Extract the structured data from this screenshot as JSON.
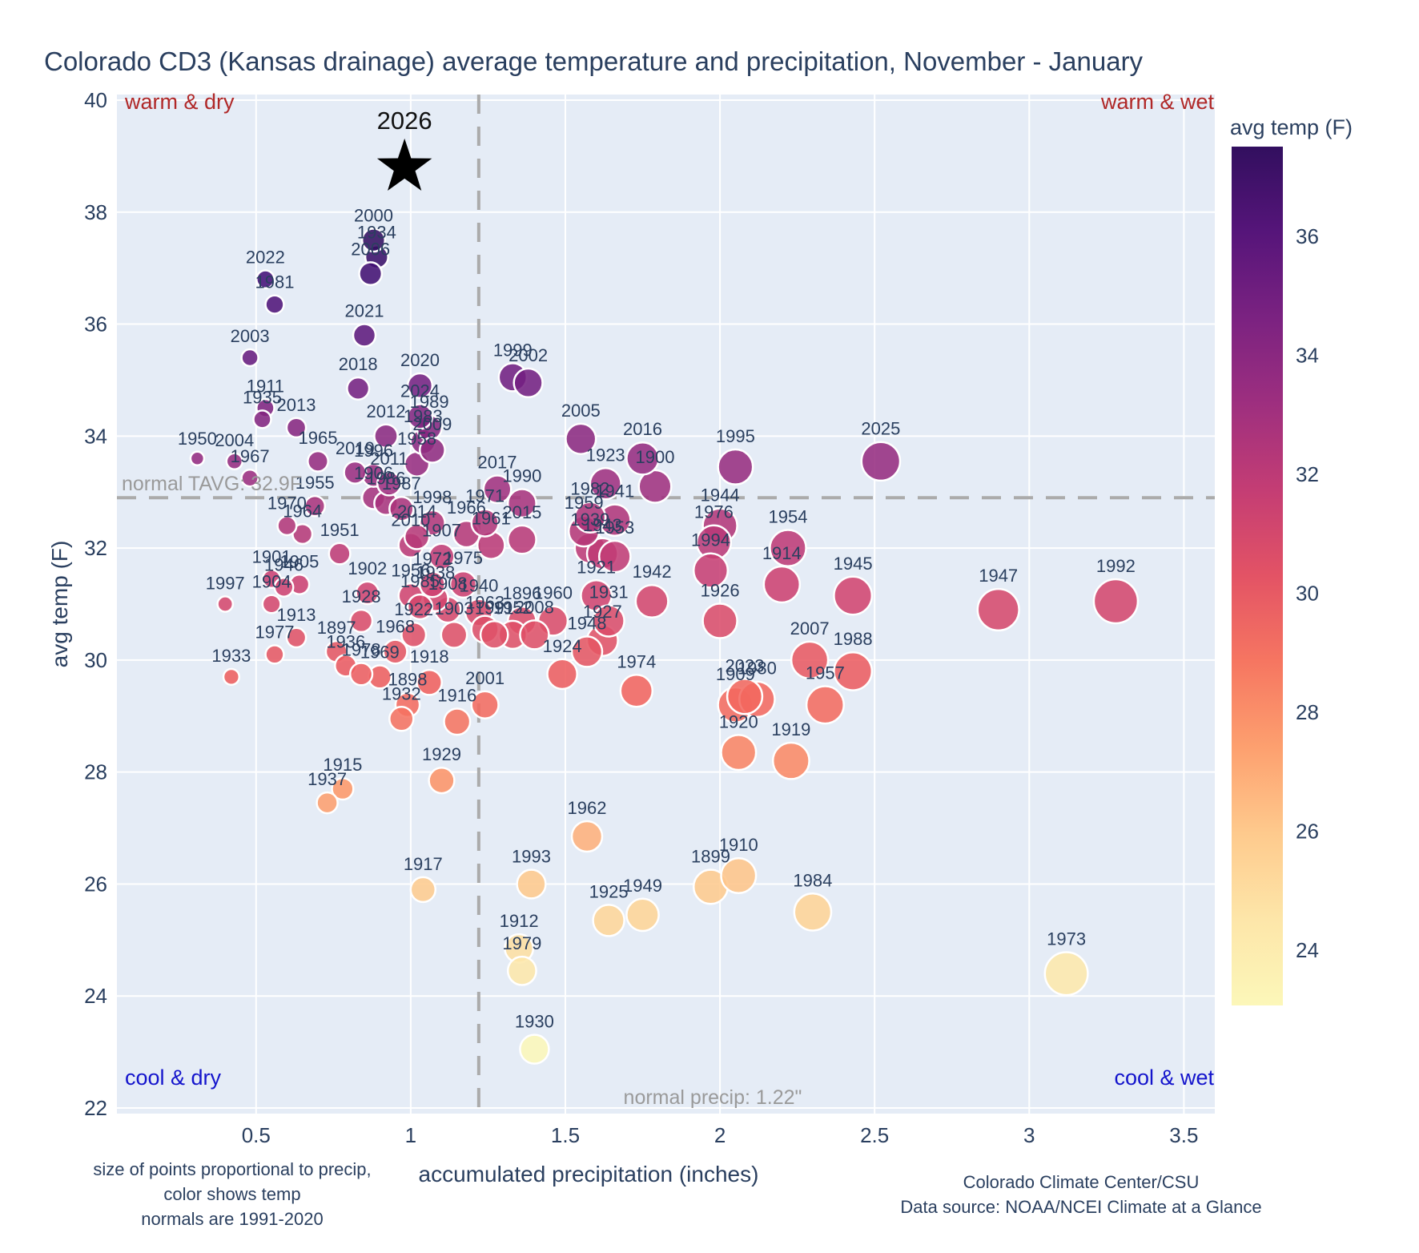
{
  "title": "Colorado CD3 (Kansas drainage) average temperature and precipitation, November - January",
  "quadrants": {
    "top_left": "warm & dry",
    "top_right": "warm & wet",
    "bottom_left": "cool & dry",
    "bottom_right": "cool & wet"
  },
  "axes": {
    "x": {
      "label": "accumulated precipitation (inches)",
      "range": [
        0.05,
        3.6
      ],
      "ticks": [
        0.5,
        1,
        1.5,
        2,
        2.5,
        3,
        3.5
      ],
      "tick_labels": [
        "0.5",
        "1",
        "1.5",
        "2",
        "2.5",
        "3",
        "3.5"
      ]
    },
    "y": {
      "label": "avg temp (F)",
      "range": [
        21.9,
        40.1
      ],
      "ticks": [
        40,
        38,
        36,
        34,
        32,
        30,
        28,
        26,
        24,
        22
      ]
    }
  },
  "reference_lines": {
    "tavg": {
      "value": 32.9,
      "label": "normal TAVG: 32.9F"
    },
    "precip": {
      "value": 1.22,
      "label": "normal precip: 1.22\""
    }
  },
  "colorbar": {
    "title": "avg temp (F)",
    "domain": [
      23.07,
      37.51
    ],
    "ticks": [
      36,
      34,
      32,
      30,
      28,
      26,
      24
    ]
  },
  "footnotes": {
    "left": [
      "size of points proportional to precip,",
      "color shows temp",
      "normals are 1991-2020"
    ],
    "right": [
      "Colorado Climate Center/CSU",
      "Data source: NOAA/NCEI Climate at a Glance"
    ]
  },
  "colors": {
    "text": "#2a3f5f",
    "qwarm": "#b02828",
    "qcool": "#1414cc",
    "ref": "#9a9a9a",
    "plot_bg": "#e5ecf6",
    "grid": "#ffffff",
    "star": "#000000",
    "marker_stroke": "#ffffff"
  },
  "star": {
    "year": "2026",
    "precip": 0.98,
    "temp": 38.8
  },
  "chart_data": {
    "type": "scatter",
    "title": "Colorado CD3 (Kansas drainage) average temperature and precipitation, November - January",
    "xlabel": "accumulated precipitation (inches)",
    "ylabel": "avg temp (F)",
    "color_encodes": "avg temp (F), magma reversed",
    "size_encodes": "precip",
    "columns": [
      "year",
      "precip_in",
      "avg_temp_F"
    ],
    "points": [
      [
        1896,
        1.36,
        30.7
      ],
      [
        1897,
        0.76,
        30.15
      ],
      [
        1898,
        0.99,
        29.2
      ],
      [
        1899,
        1.97,
        25.95
      ],
      [
        1900,
        1.79,
        33.1
      ],
      [
        1901,
        0.55,
        31.45
      ],
      [
        1902,
        0.86,
        31.2
      ],
      [
        1903,
        1.14,
        30.45
      ],
      [
        1904,
        0.55,
        31.0
      ],
      [
        1905,
        0.64,
        31.35
      ],
      [
        1906,
        0.88,
        32.9
      ],
      [
        1907,
        1.1,
        31.85
      ],
      [
        1908,
        1.12,
        30.9
      ],
      [
        1909,
        2.05,
        29.2
      ],
      [
        1910,
        2.06,
        26.15
      ],
      [
        1911,
        0.53,
        34.5
      ],
      [
        1912,
        1.35,
        24.85
      ],
      [
        1913,
        0.63,
        30.4
      ],
      [
        1914,
        2.2,
        31.35
      ],
      [
        1915,
        0.78,
        27.7
      ],
      [
        1916,
        1.15,
        28.9
      ],
      [
        1917,
        1.04,
        25.9
      ],
      [
        1918,
        1.06,
        29.6
      ],
      [
        1919,
        2.23,
        28.2
      ],
      [
        1920,
        2.06,
        28.35
      ],
      [
        1921,
        1.6,
        31.15
      ],
      [
        1922,
        1.01,
        30.45
      ],
      [
        1923,
        1.63,
        33.15
      ],
      [
        1924,
        1.49,
        29.75
      ],
      [
        1925,
        1.64,
        25.35
      ],
      [
        1926,
        2.0,
        30.7
      ],
      [
        1927,
        1.62,
        30.35
      ],
      [
        1928,
        0.84,
        30.7
      ],
      [
        1929,
        1.1,
        27.85
      ],
      [
        1930,
        1.4,
        23.05
      ],
      [
        1931,
        1.64,
        30.7
      ],
      [
        1932,
        0.97,
        28.95
      ],
      [
        1933,
        0.42,
        29.7
      ],
      [
        1934,
        0.89,
        37.2
      ],
      [
        1935,
        0.52,
        34.3
      ],
      [
        1936,
        0.79,
        29.9
      ],
      [
        1937,
        0.73,
        27.45
      ],
      [
        1938,
        1.08,
        31.1
      ],
      [
        1939,
        1.58,
        32.0
      ],
      [
        1940,
        1.22,
        30.85
      ],
      [
        1941,
        1.66,
        32.5
      ],
      [
        1942,
        1.78,
        31.05
      ],
      [
        1943,
        1.62,
        31.9
      ],
      [
        1944,
        2.0,
        32.4
      ],
      [
        1945,
        2.43,
        31.15
      ],
      [
        1946,
        0.59,
        31.3
      ],
      [
        1947,
        2.9,
        30.9
      ],
      [
        1948,
        1.57,
        30.15
      ],
      [
        1949,
        1.75,
        25.45
      ],
      [
        1950,
        0.31,
        33.6
      ],
      [
        1951,
        0.77,
        31.9
      ],
      [
        1952,
        1.33,
        30.45
      ],
      [
        1953,
        1.66,
        31.85
      ],
      [
        1954,
        2.22,
        32.0
      ],
      [
        1955,
        0.69,
        32.75
      ],
      [
        1956,
        1.0,
        31.15
      ],
      [
        1957,
        2.34,
        29.2
      ],
      [
        1958,
        1.02,
        33.5
      ],
      [
        1959,
        1.56,
        32.3
      ],
      [
        1960,
        1.46,
        30.7
      ],
      [
        1961,
        1.26,
        32.05
      ],
      [
        1962,
        1.57,
        26.85
      ],
      [
        1963,
        1.24,
        30.55
      ],
      [
        1964,
        0.65,
        32.25
      ],
      [
        1965,
        0.7,
        33.55
      ],
      [
        1966,
        1.18,
        32.25
      ],
      [
        1967,
        0.48,
        33.25
      ],
      [
        1968,
        0.95,
        30.15
      ],
      [
        1969,
        0.9,
        29.7
      ],
      [
        1970,
        0.6,
        32.4
      ],
      [
        1971,
        1.24,
        32.45
      ],
      [
        1972,
        1.07,
        31.35
      ],
      [
        1973,
        3.12,
        24.4
      ],
      [
        1974,
        1.73,
        29.45
      ],
      [
        1975,
        1.17,
        31.35
      ],
      [
        1976,
        1.98,
        32.1
      ],
      [
        1977,
        0.56,
        30.1
      ],
      [
        1978,
        0.84,
        29.75
      ],
      [
        1979,
        1.36,
        24.45
      ],
      [
        1980,
        2.12,
        29.3
      ],
      [
        1981,
        0.56,
        36.35
      ],
      [
        1982,
        1.58,
        32.55
      ],
      [
        1983,
        1.04,
        33.9
      ],
      [
        1984,
        2.3,
        25.5
      ],
      [
        1985,
        1.03,
        30.95
      ],
      [
        1986,
        0.92,
        32.8
      ],
      [
        1987,
        0.97,
        32.7
      ],
      [
        1988,
        2.43,
        29.8
      ],
      [
        1989,
        1.06,
        34.15
      ],
      [
        1990,
        1.36,
        32.8
      ],
      [
        1991,
        1.27,
        30.45
      ],
      [
        1992,
        3.28,
        31.05
      ],
      [
        1993,
        1.39,
        26.0
      ],
      [
        1994,
        1.97,
        31.6
      ],
      [
        1995,
        2.05,
        33.45
      ],
      [
        1996,
        0.88,
        33.3
      ],
      [
        1997,
        0.4,
        31.0
      ],
      [
        1998,
        1.07,
        32.45
      ],
      [
        1999,
        1.33,
        35.05
      ],
      [
        2000,
        0.88,
        37.5
      ],
      [
        2001,
        1.24,
        29.2
      ],
      [
        2002,
        1.38,
        34.95
      ],
      [
        2003,
        0.48,
        35.4
      ],
      [
        2004,
        0.43,
        33.55
      ],
      [
        2005,
        1.55,
        33.95
      ],
      [
        2006,
        0.87,
        36.9
      ],
      [
        2007,
        2.29,
        30.0
      ],
      [
        2008,
        1.4,
        30.45
      ],
      [
        2009,
        1.07,
        33.75
      ],
      [
        2010,
        1.0,
        32.05
      ],
      [
        2011,
        0.93,
        33.15
      ],
      [
        2012,
        0.92,
        34.0
      ],
      [
        2013,
        0.63,
        34.15
      ],
      [
        2014,
        1.02,
        32.2
      ],
      [
        2015,
        1.36,
        32.15
      ],
      [
        2016,
        1.75,
        33.6
      ],
      [
        2017,
        1.28,
        33.05
      ],
      [
        2018,
        0.83,
        34.85
      ],
      [
        2019,
        0.82,
        33.35
      ],
      [
        2020,
        1.03,
        34.9
      ],
      [
        2021,
        0.85,
        35.8
      ],
      [
        2022,
        0.53,
        36.8
      ],
      [
        2023,
        2.08,
        29.35
      ],
      [
        2024,
        1.03,
        34.35
      ],
      [
        2025,
        2.52,
        33.55
      ]
    ],
    "star_point": {
      "year": 2026,
      "precip": 0.98,
      "temp": 38.8
    },
    "grid": true,
    "legend_position": "right colorbar"
  }
}
